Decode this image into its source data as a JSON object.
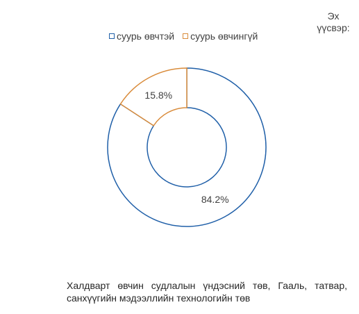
{
  "source_label": "Эх үүсвэр:",
  "caption": "Халдварт өвчин судлалын үндэсний төв, Гааль, татвар, санхүүгийн мэдээллийн технологийн төв",
  "chart_data": {
    "type": "pie",
    "variant": "donut",
    "legend_position": "top",
    "slices": [
      {
        "label": "суурь өвчтэй",
        "value": 84.2,
        "display": "84.2%",
        "color": "#1f5fa8"
      },
      {
        "label": "суурь өвчингүй",
        "value": 15.8,
        "display": "15.8%",
        "color": "#d98b3a"
      }
    ]
  }
}
